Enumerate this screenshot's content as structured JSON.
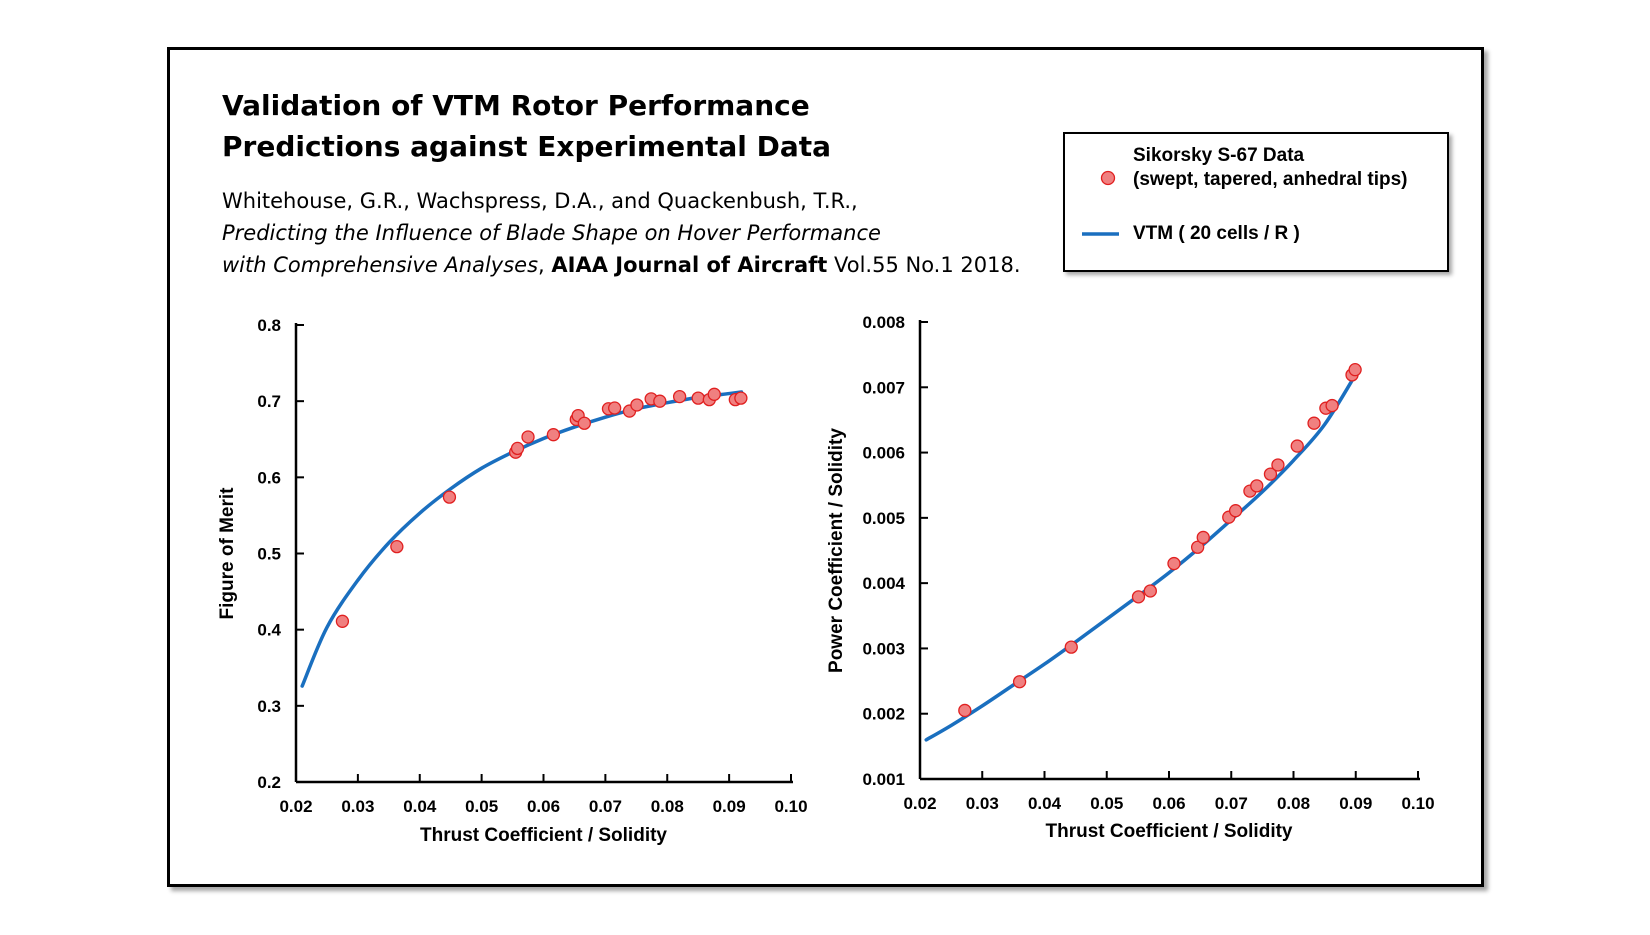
{
  "slide": {
    "title_line1": "Validation of VTM Rotor Performance",
    "title_line2": "Predictions against Experimental Data",
    "citation": {
      "authors": "Whitehouse, G.R., Wachspress, D.A., and Quackenbush, T.R.,",
      "paper_title_line1": "Predicting the Influence of Blade Shape on Hover Performance",
      "paper_title_line2": "with Comprehensive Analyses",
      "separator": ",",
      "journal": "AIAA Journal of Aircraft",
      "volume": "Vol.55 No.1 2018."
    }
  },
  "legend": {
    "marker_label_line1": "Sikorsky S-67 Data",
    "marker_label_line2": "(swept, tapered, anhedral tips)",
    "line_label": "VTM ( 20 cells / R )"
  },
  "colors": {
    "marker_fill": "#f08080",
    "marker_stroke": "#e02020",
    "line": "#1a6fbf",
    "axis": "#000000"
  },
  "chart_data": [
    {
      "type": "scatter",
      "title": "",
      "xlabel": "Thrust Coefficient / Solidity",
      "ylabel": "Figure of Merit",
      "xlim": [
        0.02,
        0.1
      ],
      "ylim": [
        0.2,
        0.8
      ],
      "xticks": [
        "0.02",
        "0.03",
        "0.04",
        "0.05",
        "0.06",
        "0.07",
        "0.08",
        "0.09",
        "0.10"
      ],
      "yticks": [
        "0.2",
        "0.3",
        "0.4",
        "0.5",
        "0.6",
        "0.7",
        "0.8"
      ],
      "grid": false,
      "series": [
        {
          "name": "Sikorsky S-67 Data (swept, tapered, anhedral tips)",
          "kind": "points",
          "x": [
            0.0275,
            0.0363,
            0.0448,
            0.0555,
            0.0558,
            0.0575,
            0.0616,
            0.0653,
            0.0656,
            0.0666,
            0.0705,
            0.0715,
            0.0739,
            0.0751,
            0.0774,
            0.0788,
            0.082,
            0.085,
            0.0868,
            0.0876,
            0.091,
            0.0919
          ],
          "y": [
            0.411,
            0.509,
            0.574,
            0.633,
            0.638,
            0.653,
            0.656,
            0.676,
            0.681,
            0.671,
            0.69,
            0.691,
            0.687,
            0.695,
            0.703,
            0.7,
            0.706,
            0.704,
            0.702,
            0.709,
            0.702,
            0.704
          ]
        },
        {
          "name": "VTM ( 20 cells / R )",
          "kind": "line",
          "x": [
            0.021,
            0.025,
            0.03,
            0.035,
            0.04,
            0.045,
            0.05,
            0.055,
            0.06,
            0.065,
            0.07,
            0.075,
            0.08,
            0.085,
            0.09,
            0.092
          ],
          "y": [
            0.326,
            0.403,
            0.465,
            0.514,
            0.553,
            0.585,
            0.612,
            0.633,
            0.651,
            0.666,
            0.679,
            0.69,
            0.698,
            0.705,
            0.71,
            0.712
          ]
        }
      ]
    },
    {
      "type": "scatter",
      "title": "",
      "xlabel": "Thrust Coefficient / Solidity",
      "ylabel": "Power Coefficient / Solidity",
      "xlim": [
        0.02,
        0.1
      ],
      "ylim": [
        0.001,
        0.008
      ],
      "xticks": [
        "0.02",
        "0.03",
        "0.04",
        "0.05",
        "0.06",
        "0.07",
        "0.08",
        "0.09",
        "0.10"
      ],
      "yticks": [
        "0.001",
        "0.002",
        "0.003",
        "0.004",
        "0.005",
        "0.006",
        "0.007",
        "0.008"
      ],
      "grid": false,
      "series": [
        {
          "name": "Sikorsky S-67 Data (swept, tapered, anhedral tips)",
          "kind": "points",
          "x": [
            0.0272,
            0.036,
            0.0443,
            0.0551,
            0.057,
            0.0608,
            0.0646,
            0.0655,
            0.0696,
            0.0707,
            0.073,
            0.0741,
            0.0763,
            0.0775,
            0.0806,
            0.0833,
            0.0852,
            0.0862,
            0.0894,
            0.0899
          ],
          "y": [
            0.00205,
            0.00249,
            0.00302,
            0.00379,
            0.00388,
            0.0043,
            0.00455,
            0.0047,
            0.00501,
            0.00511,
            0.00541,
            0.00549,
            0.00567,
            0.00581,
            0.0061,
            0.00645,
            0.00668,
            0.00672,
            0.00719,
            0.00727
          ]
        },
        {
          "name": "VTM ( 20 cells / R )",
          "kind": "line",
          "x": [
            0.021,
            0.025,
            0.03,
            0.035,
            0.04,
            0.045,
            0.05,
            0.055,
            0.06,
            0.065,
            0.07,
            0.075,
            0.08,
            0.085,
            0.09,
            0.0905
          ],
          "y": [
            0.0016,
            0.00182,
            0.00212,
            0.00244,
            0.00276,
            0.0031,
            0.00345,
            0.0038,
            0.00416,
            0.00455,
            0.00497,
            0.0054,
            0.00588,
            0.00643,
            0.0072,
            0.0073
          ]
        }
      ]
    }
  ]
}
